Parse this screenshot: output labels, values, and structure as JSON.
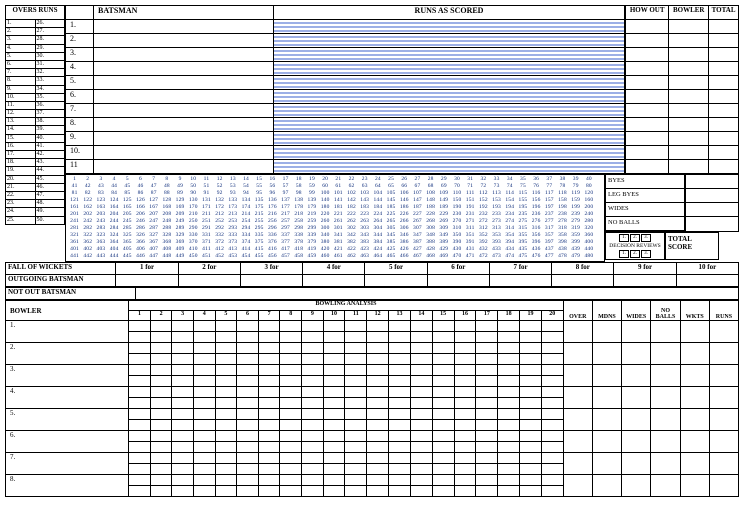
{
  "headers": {
    "overs_runs": "OVERS\nRUNS",
    "batsman": "BATSMAN",
    "runs_as_scored": "RUNS AS SCORED",
    "how_out": "HOW OUT",
    "bowler": "BOWLER",
    "total": "TOTAL"
  },
  "overs_left": [
    "1.",
    "2.",
    "3.",
    "4.",
    "5.",
    "6.",
    "7.",
    "8.",
    "9.",
    "10.",
    "11.",
    "12.",
    "13.",
    "14.",
    "15.",
    "16.",
    "17.",
    "18.",
    "19.",
    "20.",
    "21.",
    "22.",
    "23.",
    "24.",
    "25."
  ],
  "overs_right": [
    "26.",
    "27.",
    "28.",
    "29.",
    "30.",
    "31.",
    "32.",
    "33.",
    "34.",
    "35.",
    "36.",
    "37.",
    "38.",
    "39.",
    "40.",
    "41.",
    "42.",
    "43.",
    "44.",
    "45.",
    "46.",
    "47.",
    "48.",
    "49.",
    "50."
  ],
  "batsmen_numbers": [
    "1.",
    "2.",
    "3.",
    "4.",
    "5.",
    "6.",
    "7.",
    "8.",
    "9.",
    "10.",
    "11"
  ],
  "extras": {
    "byes": "BYES",
    "leg_byes": "LEG BYES",
    "wides": "WIDES",
    "no_balls": "NO BALLS"
  },
  "decision": {
    "label": "DECISION\nREVIEWS",
    "nums": [
      "1.",
      "2.",
      "3."
    ]
  },
  "total_score": "TOTAL SCORE",
  "fall_of_wickets": {
    "label": "FALL OF WICKETS",
    "cols": [
      "1 for",
      "2 for",
      "3 for",
      "4 for",
      "5 for",
      "6 for",
      "7 for",
      "8 for",
      "9 for",
      "10 for"
    ]
  },
  "outgoing": "OUTGOING BATSMAN",
  "not_out": "NOT OUT BATSMAN",
  "bowling": {
    "title": "BOWLING ANALYSIS",
    "bowler_hdr": "BOWLER",
    "overs_cols": [
      "1",
      "2",
      "3",
      "4",
      "5",
      "6",
      "7",
      "8",
      "9",
      "10",
      "11",
      "12",
      "13",
      "14",
      "15",
      "16",
      "17",
      "18",
      "19",
      "20"
    ],
    "stat_cols": [
      "OVER",
      "MDNS",
      "WIDES",
      "NO BALLS",
      "WKTS",
      "RUNS"
    ],
    "rows": [
      "1.",
      "2.",
      "3.",
      "4.",
      "5.",
      "6.",
      "7.",
      "8."
    ]
  },
  "tally": {
    "start": 1,
    "end": 480,
    "per_row": 40
  },
  "colors": {
    "line_blue": "#3a5fcd",
    "tally_blue": "#0a2a7a",
    "border": "#000000",
    "bg": "#ffffff"
  }
}
